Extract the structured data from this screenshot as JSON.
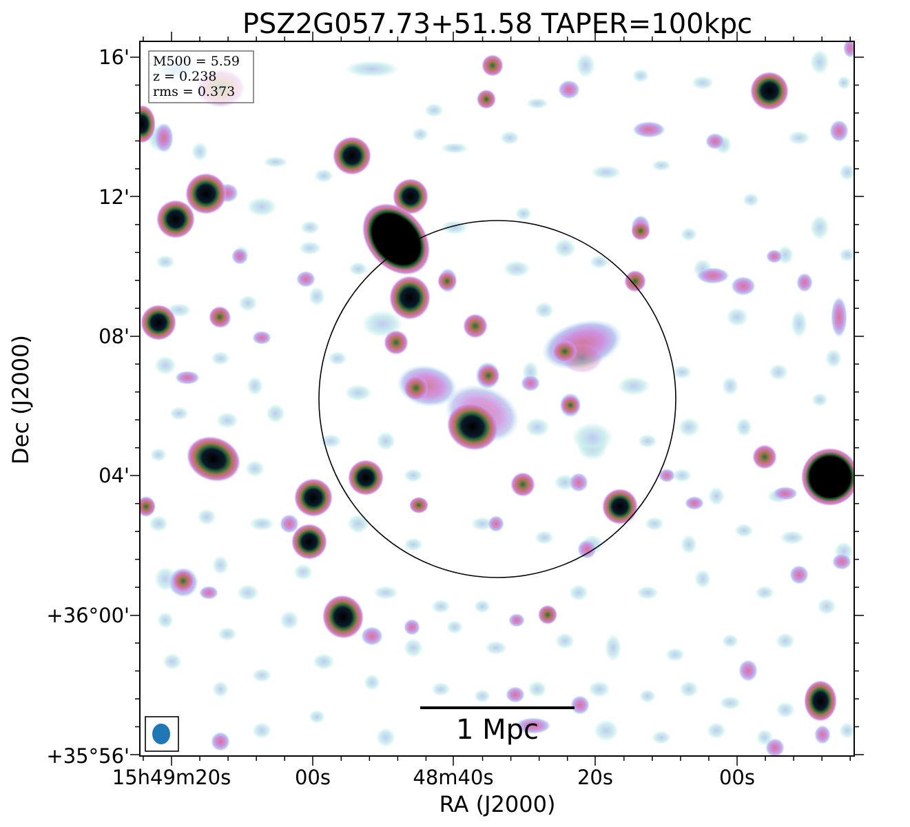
{
  "chart_data": {
    "type": "heatmap",
    "title": "PSZ2G057.73+51.58 TAPER=100kpc",
    "xlabel": "RA (J2000)",
    "ylabel": "Dec (J2000)",
    "x_ticks": [
      "15h49m20s",
      "00s",
      "48m40s",
      "20s",
      "00s"
    ],
    "y_ticks": [
      "16'",
      "12'",
      "08'",
      "04'",
      "+36°00'",
      "+35°56'"
    ],
    "info": {
      "m500": "M500 = 5.59",
      "z": "z = 0.238",
      "rms": "rms = 0.373"
    },
    "scalebar_label": "1 Mpc",
    "colormap": [
      "#ffffff",
      "#c8ecec",
      "#b8c4f0",
      "#cc88dc",
      "#d07090",
      "#a07850",
      "#2a6a3a",
      "#0a1a2a",
      "#000000"
    ],
    "circle_color": "#000000",
    "beam_color": "#1f77b4"
  }
}
